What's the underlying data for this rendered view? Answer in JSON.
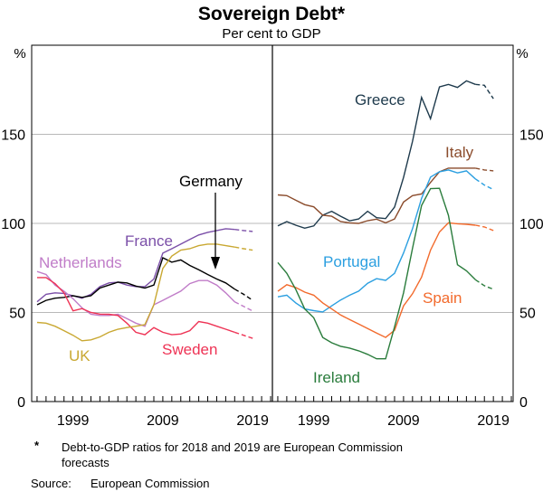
{
  "chart_data": [
    {
      "type": "line",
      "panel": "left",
      "title": "Sovereign Debt*",
      "subtitle": "Per cent to GDP",
      "ylabel": "%",
      "ylim": [
        0,
        200
      ],
      "yticks": [
        0,
        50,
        100,
        150
      ],
      "xlim": [
        1994.4,
        2021.2
      ],
      "xticks": [
        1999,
        2009,
        2019
      ],
      "forecast_from": 2017,
      "x": [
        1995,
        1996,
        1997,
        1998,
        1999,
        2000,
        2001,
        2002,
        2003,
        2004,
        2005,
        2006,
        2007,
        2008,
        2009,
        2010,
        2011,
        2012,
        2013,
        2014,
        2015,
        2016,
        2017,
        2018,
        2019
      ],
      "series": [
        {
          "name": "France",
          "color": "#7b4fa8",
          "values": [
            56,
            60.2,
            61,
            60.7,
            59.4,
            58,
            60.2,
            64.5,
            66.6,
            67,
            65.4,
            64.5,
            64.5,
            68.8,
            83.3,
            85.8,
            88.4,
            91,
            93.5,
            95,
            96,
            97,
            96.6,
            96,
            95.5
          ]
        },
        {
          "name": "Germany",
          "color": "#000000",
          "values": [
            54.3,
            56.8,
            58,
            58.5,
            59.4,
            58.5,
            59.4,
            63.7,
            65.4,
            67,
            66.6,
            64.8,
            63.7,
            65.4,
            80.7,
            78.2,
            79.5,
            76.4,
            74,
            71.3,
            68.8,
            66.6,
            63.1,
            60.2,
            56.8
          ]
        },
        {
          "name": "Netherlands",
          "color": "#c07cc8",
          "values": [
            73,
            71.3,
            65.4,
            62,
            57.7,
            52.6,
            49,
            48.3,
            48.3,
            49,
            46.6,
            44,
            42.3,
            54.3,
            56.8,
            59.4,
            62,
            66.2,
            67.9,
            67.9,
            65.4,
            61,
            56,
            53.4,
            50.8
          ]
        },
        {
          "name": "Sweden",
          "color": "#ee3355",
          "values": [
            69.6,
            69.6,
            66.2,
            61,
            50.9,
            52.2,
            50,
            49.1,
            49,
            48.3,
            44,
            38.9,
            37.5,
            41.5,
            38.9,
            37.5,
            37.9,
            39.8,
            44.9,
            44,
            42.3,
            40.6,
            38.9,
            37.2,
            35.5
          ]
        },
        {
          "name": "UK",
          "color": "#c9a832",
          "values": [
            44.4,
            44,
            42.3,
            39.8,
            37.2,
            34.1,
            34.6,
            36.3,
            38.9,
            40.6,
            41.5,
            42.3,
            43.2,
            54.3,
            74.7,
            81.6,
            85,
            85.8,
            87.5,
            88.4,
            88.4,
            87.5,
            86.7,
            85.8,
            85
          ]
        }
      ],
      "annotations": [
        "Germany"
      ]
    },
    {
      "type": "line",
      "panel": "right",
      "ylabel": "%",
      "ylim": [
        0,
        200
      ],
      "yticks": [
        0,
        50,
        100,
        150
      ],
      "xlim": [
        1994.4,
        2021.2
      ],
      "xticks": [
        1999,
        2009,
        2019
      ],
      "forecast_from": 2017,
      "x": [
        1995,
        1996,
        1997,
        1998,
        1999,
        2000,
        2001,
        2002,
        2003,
        2004,
        2005,
        2006,
        2007,
        2008,
        2009,
        2010,
        2011,
        2012,
        2013,
        2014,
        2015,
        2016,
        2017,
        2018,
        2019
      ],
      "series": [
        {
          "name": "Greece",
          "color": "#1e3a4c",
          "values": [
            98.6,
            101,
            99,
            97.3,
            98.6,
            104.6,
            106.8,
            104,
            101.4,
            102.5,
            106.8,
            103.2,
            102.7,
            109.2,
            125.8,
            146,
            170.7,
            158.8,
            176.6,
            178,
            176.3,
            180,
            178,
            177.5,
            170
          ]
        },
        {
          "name": "Italy",
          "color": "#8b4c2c",
          "values": [
            116,
            115.6,
            113,
            110.5,
            109.3,
            104.6,
            104,
            101,
            100.3,
            100,
            101.5,
            102.4,
            100.3,
            102.5,
            112,
            115.6,
            116.5,
            123,
            129,
            131,
            131,
            131,
            131,
            130,
            129.5
          ]
        },
        {
          "name": "Portugal",
          "color": "#2b9fe0",
          "values": [
            58.8,
            59.7,
            55.4,
            52,
            51,
            50.3,
            53.7,
            57,
            59.7,
            62,
            66.4,
            69,
            68,
            72,
            83.4,
            97,
            114,
            126,
            129,
            130,
            128.3,
            129.5,
            125,
            121.5,
            119
          ]
        },
        {
          "name": "Spain",
          "color": "#f26a2c",
          "values": [
            61.9,
            65.6,
            64,
            61.4,
            59.7,
            55.4,
            52,
            48.6,
            46,
            43.5,
            41,
            38.5,
            36,
            40,
            53.7,
            60.5,
            69.8,
            85,
            95.2,
            100.3,
            99.8,
            99.5,
            99,
            98,
            96
          ]
        },
        {
          "name": "Ireland",
          "color": "#2a7c3c",
          "values": [
            78,
            72,
            63,
            52,
            47,
            36,
            33,
            31,
            30,
            28.5,
            26.5,
            24,
            24,
            42,
            61,
            86,
            110,
            119.5,
            119.7,
            104.5,
            76.8,
            73.4,
            68.4,
            65,
            63
          ]
        }
      ]
    }
  ],
  "footnote": {
    "marker": "*",
    "line1": "Debt-to-GDP ratios for 2018 and 2019 are European Commission",
    "line2": "forecasts"
  },
  "source": {
    "label": "Source:",
    "text": "European Commission"
  },
  "ytick_labels": [
    "0",
    "50",
    "100",
    "150"
  ],
  "xtick_labels": [
    "1999",
    "2009",
    "2019"
  ]
}
